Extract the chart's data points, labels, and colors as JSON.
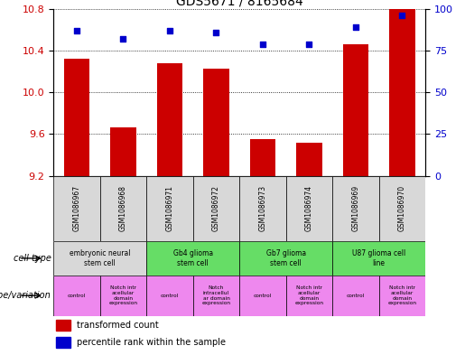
{
  "title": "GDS5671 / 8165684",
  "samples": [
    "GSM1086967",
    "GSM1086968",
    "GSM1086971",
    "GSM1086972",
    "GSM1086973",
    "GSM1086974",
    "GSM1086969",
    "GSM1086970"
  ],
  "transformed_count": [
    10.32,
    9.66,
    10.28,
    10.23,
    9.55,
    9.52,
    10.46,
    10.8
  ],
  "percentile_rank": [
    87,
    82,
    87,
    86,
    79,
    79,
    89,
    96
  ],
  "ylim_left": [
    9.2,
    10.8
  ],
  "ylim_right": [
    0,
    100
  ],
  "yticks_left": [
    9.2,
    9.6,
    10.0,
    10.4,
    10.8
  ],
  "yticks_right": [
    0,
    25,
    50,
    75,
    100
  ],
  "bar_color": "#cc0000",
  "dot_color": "#0000cc",
  "bar_bottom": 9.2,
  "cell_types": [
    {
      "label": "embryonic neural\nstem cell",
      "start": 0,
      "end": 2,
      "color": "#d8d8d8"
    },
    {
      "label": "Gb4 glioma\nstem cell",
      "start": 2,
      "end": 4,
      "color": "#66dd66"
    },
    {
      "label": "Gb7 glioma\nstem cell",
      "start": 4,
      "end": 6,
      "color": "#66dd66"
    },
    {
      "label": "U87 glioma cell\nline",
      "start": 6,
      "end": 8,
      "color": "#66dd66"
    }
  ],
  "genotype_labels": [
    {
      "label": "control",
      "start": 0,
      "end": 1,
      "color": "#ee88ee"
    },
    {
      "label": "Notch intr\nacellular\ndomain\nexpression",
      "start": 1,
      "end": 2,
      "color": "#ee88ee"
    },
    {
      "label": "control",
      "start": 2,
      "end": 3,
      "color": "#ee88ee"
    },
    {
      "label": "Notch\nintracellul\nar domain\nexpression",
      "start": 3,
      "end": 4,
      "color": "#ee88ee"
    },
    {
      "label": "control",
      "start": 4,
      "end": 5,
      "color": "#ee88ee"
    },
    {
      "label": "Notch intr\nacellular\ndomain\nexpression",
      "start": 5,
      "end": 6,
      "color": "#ee88ee"
    },
    {
      "label": "control",
      "start": 6,
      "end": 7,
      "color": "#ee88ee"
    },
    {
      "label": "Notch intr\nacellular\ndomain\nexpression",
      "start": 7,
      "end": 8,
      "color": "#ee88ee"
    }
  ],
  "legend_items": [
    {
      "color": "#cc0000",
      "label": "transformed count"
    },
    {
      "color": "#0000cc",
      "label": "percentile rank within the sample"
    }
  ],
  "left_label_color": "#cc0000",
  "right_label_color": "#0000cc",
  "cell_type_label": "cell type",
  "genotype_label": "genotype/variation"
}
